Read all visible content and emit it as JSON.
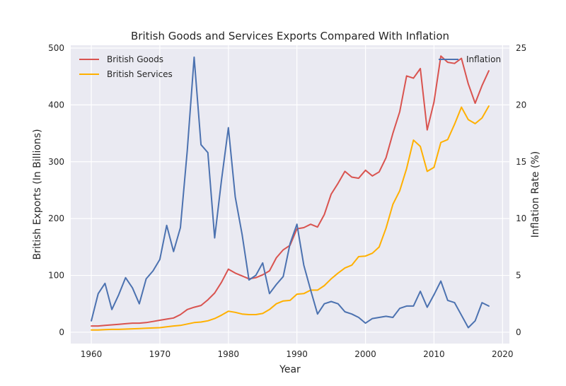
{
  "chart_data": {
    "type": "line",
    "title": "British Goods and Services Exports Compared With Inflation",
    "xlabel": "Year",
    "ylabel": "British Exports (In Billions)",
    "y2label": "Inflation Rate (%)",
    "xlim": [
      1957,
      2021
    ],
    "ylim": [
      -20,
      505
    ],
    "y2lim": [
      -1,
      25.25
    ],
    "xticks": [
      1960,
      1970,
      1980,
      1990,
      2000,
      2010,
      2020
    ],
    "yticks": [
      0,
      100,
      200,
      300,
      400,
      500
    ],
    "y2ticks": [
      0,
      5,
      10,
      15,
      20,
      25
    ],
    "grid": true,
    "background": "#EAEAF2",
    "x": [
      1960,
      1961,
      1962,
      1963,
      1964,
      1965,
      1966,
      1967,
      1968,
      1969,
      1970,
      1971,
      1972,
      1973,
      1974,
      1975,
      1976,
      1977,
      1978,
      1979,
      1980,
      1981,
      1982,
      1983,
      1984,
      1985,
      1986,
      1987,
      1988,
      1989,
      1990,
      1991,
      1992,
      1993,
      1994,
      1995,
      1996,
      1997,
      1998,
      1999,
      2000,
      2001,
      2002,
      2003,
      2004,
      2005,
      2006,
      2007,
      2008,
      2009,
      2010,
      2011,
      2012,
      2013,
      2014,
      2015,
      2016,
      2017,
      2018
    ],
    "series": [
      {
        "name": "British Goods",
        "axis": "left",
        "color": "#D9534F",
        "values": [
          11,
          11,
          12,
          13,
          14,
          15,
          16,
          16,
          17,
          19,
          21,
          23,
          25,
          31,
          40,
          44,
          47,
          57,
          69,
          88,
          111,
          104,
          99,
          94,
          96,
          101,
          108,
          131,
          145,
          153,
          182,
          184,
          190,
          185,
          207,
          243,
          262,
          283,
          273,
          271,
          285,
          275,
          282,
          307,
          350,
          388,
          451,
          447,
          464,
          356,
          405,
          486,
          475,
          473,
          482,
          437,
          403,
          434,
          460
        ]
      },
      {
        "name": "British Services",
        "axis": "left",
        "color": "#FFB000",
        "values": [
          4,
          4,
          4.5,
          5,
          5,
          5.5,
          6,
          6.5,
          7,
          7.5,
          8,
          9.5,
          11,
          12,
          14.5,
          17,
          18,
          20,
          24,
          30,
          37,
          35,
          32,
          31,
          31,
          33,
          40,
          50,
          55,
          56,
          67,
          68,
          74,
          74,
          82,
          94,
          104,
          113,
          118,
          133,
          134,
          139,
          150,
          183,
          225,
          249,
          288,
          338,
          327,
          283,
          290,
          334,
          339,
          366,
          396,
          374,
          367,
          377,
          398
        ]
      },
      {
        "name": "Inflation",
        "axis": "right",
        "color": "#4C72B0",
        "values": [
          1.0,
          3.4,
          4.3,
          2.0,
          3.3,
          4.8,
          3.9,
          2.5,
          4.7,
          5.4,
          6.4,
          9.4,
          7.1,
          9.2,
          16.0,
          24.2,
          16.5,
          15.8,
          8.3,
          13.4,
          18.0,
          11.9,
          8.6,
          4.6,
          5.0,
          6.1,
          3.4,
          4.2,
          4.9,
          7.8,
          9.5,
          5.9,
          3.7,
          1.6,
          2.5,
          2.7,
          2.5,
          1.8,
          1.6,
          1.3,
          0.8,
          1.2,
          1.3,
          1.4,
          1.3,
          2.1,
          2.3,
          2.3,
          3.6,
          2.2,
          3.3,
          4.5,
          2.8,
          2.6,
          1.5,
          0.4,
          1.0,
          2.6,
          2.3
        ]
      }
    ],
    "legends": [
      {
        "placement": "upper-left",
        "entries": [
          "British Goods",
          "British Services"
        ]
      },
      {
        "placement": "upper-right",
        "entries": [
          "Inflation"
        ]
      }
    ]
  }
}
